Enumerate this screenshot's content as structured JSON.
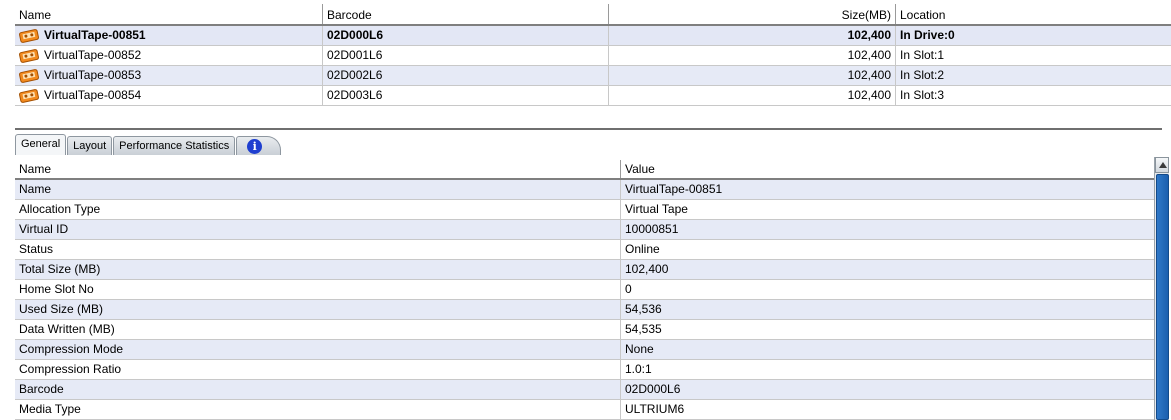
{
  "tape_table": {
    "columns": {
      "name": "Name",
      "barcode": "Barcode",
      "size": "Size(MB)",
      "location": "Location"
    },
    "rows": [
      {
        "name": "VirtualTape-00851",
        "barcode": "02D000L6",
        "size": "102,400",
        "location": "In Drive:0",
        "icon": "tape-icon"
      },
      {
        "name": "VirtualTape-00852",
        "barcode": "02D001L6",
        "size": "102,400",
        "location": "In Slot:1",
        "icon": "tape-icon"
      },
      {
        "name": "VirtualTape-00853",
        "barcode": "02D002L6",
        "size": "102,400",
        "location": "In Slot:2",
        "icon": "tape-icon"
      },
      {
        "name": "VirtualTape-00854",
        "barcode": "02D003L6",
        "size": "102,400",
        "location": "In Slot:3",
        "icon": "tape-icon"
      }
    ],
    "selected_index": 0
  },
  "tabs": [
    {
      "label": "General",
      "active": true
    },
    {
      "label": "Layout",
      "active": false
    },
    {
      "label": "Performance Statistics",
      "active": false
    }
  ],
  "info_tab_icon": "info-icon",
  "info_icon_glyph": "i",
  "properties": {
    "columns": {
      "name": "Name",
      "value": "Value"
    },
    "rows": [
      {
        "name": "Name",
        "value": "VirtualTape-00851"
      },
      {
        "name": "Allocation Type",
        "value": "Virtual Tape"
      },
      {
        "name": "Virtual ID",
        "value": "10000851"
      },
      {
        "name": "Status",
        "value": "Online"
      },
      {
        "name": "Total Size (MB)",
        "value": "102,400"
      },
      {
        "name": "Home Slot No",
        "value": "0"
      },
      {
        "name": "Used Size (MB)",
        "value": "54,536"
      },
      {
        "name": "Data Written (MB)",
        "value": "54,535"
      },
      {
        "name": "Compression Mode",
        "value": "None"
      },
      {
        "name": "Compression Ratio",
        "value": "1.0:1"
      },
      {
        "name": "Barcode",
        "value": "02D000L6"
      },
      {
        "name": "Media Type",
        "value": "ULTRIUM6"
      }
    ]
  },
  "colors": {
    "selected_row": "#e3e7f5",
    "alt_row": "#e6eaf6",
    "scroll_thumb": "#2f78c8",
    "info_icon": "#1f3fd0",
    "tape_orange": "#f28a1e"
  }
}
